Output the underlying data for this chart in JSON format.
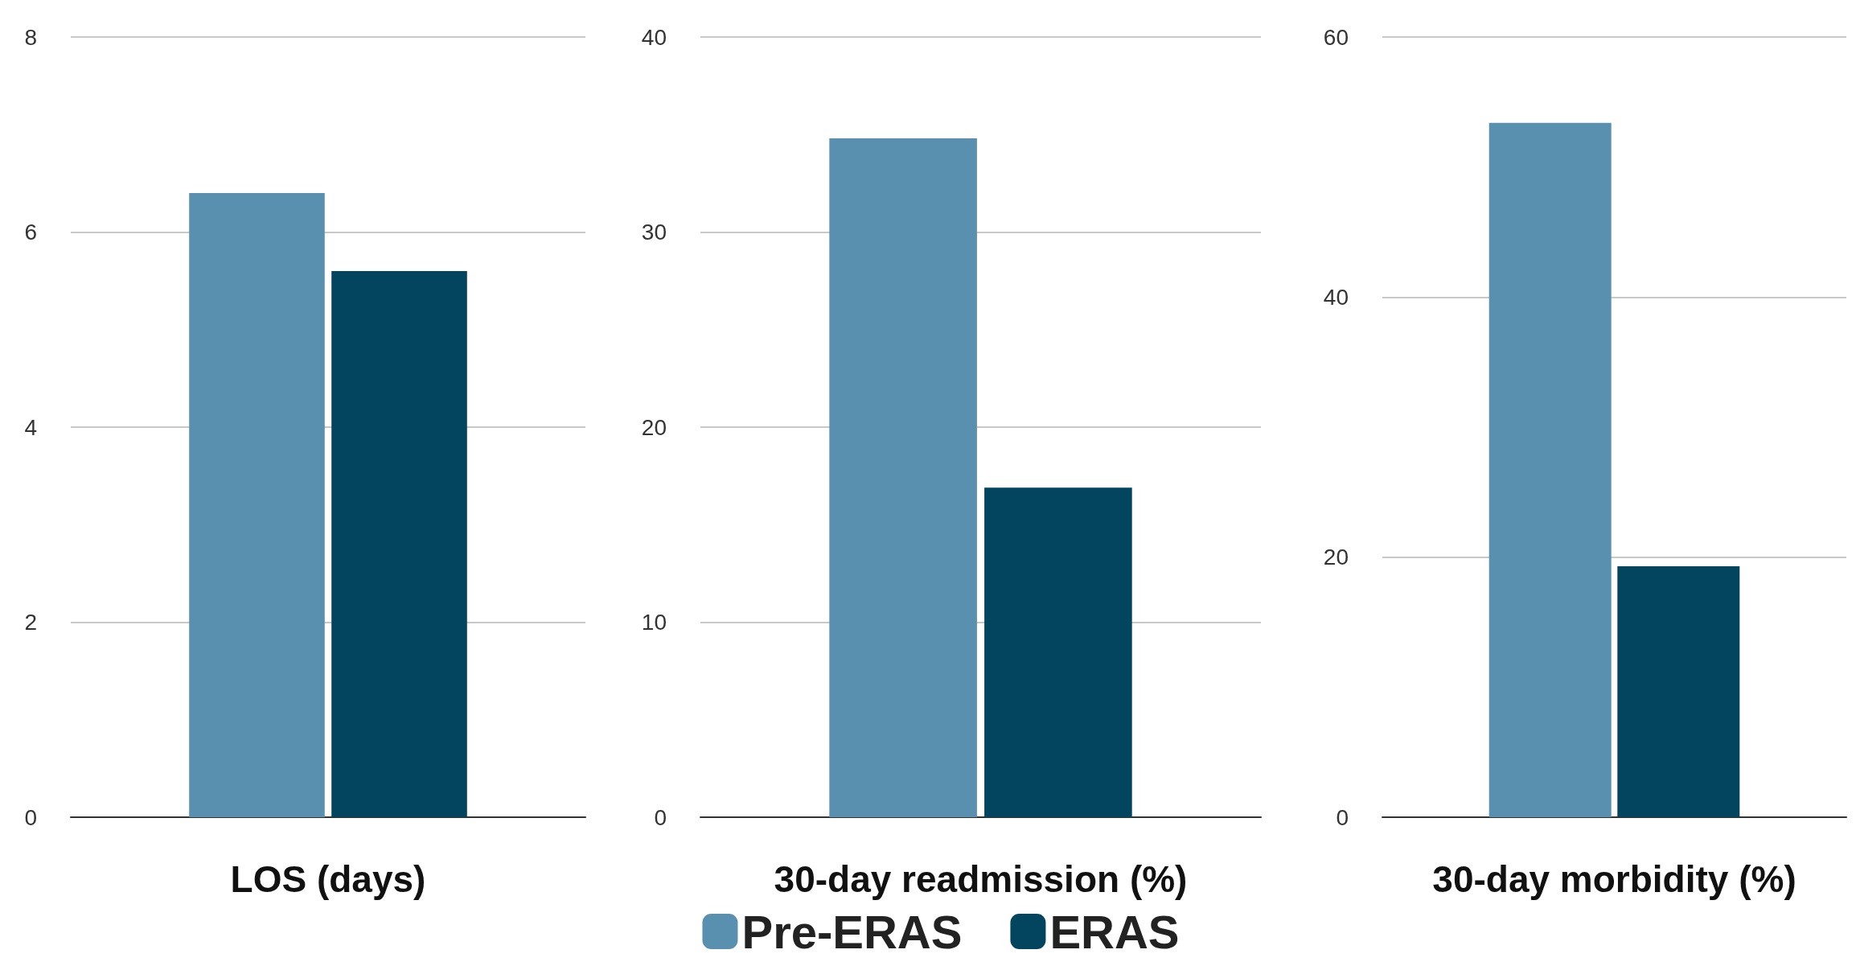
{
  "chart_data": [
    {
      "type": "bar",
      "xlabel": "LOS (days)",
      "categories": [
        null
      ],
      "series": [
        {
          "color": "#5990af",
          "values": [
            6.4
          ]
        },
        {
          "color": "#03445f",
          "values": [
            5.6
          ]
        }
      ],
      "ylim": [
        0,
        8
      ],
      "yticks": [
        0,
        2,
        4,
        6,
        8
      ],
      "grid": "y"
    },
    {
      "type": "bar",
      "xlabel": "30-day readmission (%)",
      "categories": [
        null
      ],
      "series": [
        {
          "name": "Pre-ERAS",
          "color": "#5990af",
          "values": [
            34.8
          ]
        },
        {
          "name": "ERAS",
          "color": "#03445f",
          "values": [
            16.9
          ]
        }
      ],
      "ylim": [
        0,
        40
      ],
      "yticks": [
        0,
        10,
        20,
        30,
        40
      ],
      "grid": "y",
      "legend": "bottom"
    },
    {
      "type": "bar",
      "xlabel": "30-day morbidity (%)",
      "categories": [
        null
      ],
      "series": [
        {
          "color": "#5990af",
          "values": [
            53.4
          ]
        },
        {
          "color": "#03445f",
          "values": [
            19.3
          ]
        }
      ],
      "ylim": [
        0,
        60
      ],
      "yticks": [
        0,
        20,
        40,
        60
      ],
      "grid": "y"
    }
  ]
}
